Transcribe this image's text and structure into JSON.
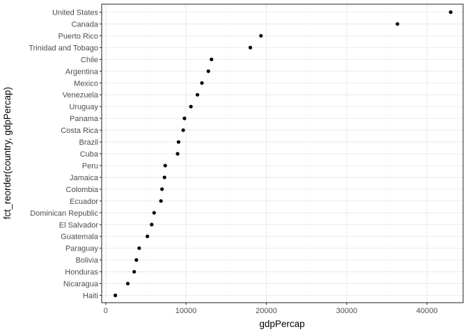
{
  "chart_data": {
    "type": "scatter",
    "xlabel": "gdpPercap",
    "ylabel": "fct_reorder(country, gdpPercap)",
    "xlim": [
      -500,
      44500
    ],
    "x_ticks": [
      0,
      10000,
      20000,
      30000,
      40000
    ],
    "x_tick_labels": [
      "0",
      "10000",
      "20000",
      "30000",
      "40000"
    ],
    "grid": true,
    "point_color": "#000000",
    "panel_border_color": "#333333",
    "grid_major_color": "#ebebeb",
    "grid_minor_color": "#f5f5f5",
    "points": [
      {
        "country": "Haiti",
        "gdpPercap": 1200
      },
      {
        "country": "Nicaragua",
        "gdpPercap": 2750
      },
      {
        "country": "Honduras",
        "gdpPercap": 3550
      },
      {
        "country": "Bolivia",
        "gdpPercap": 3820
      },
      {
        "country": "Paraguay",
        "gdpPercap": 4170
      },
      {
        "country": "Guatemala",
        "gdpPercap": 5190
      },
      {
        "country": "El Salvador",
        "gdpPercap": 5730
      },
      {
        "country": "Dominican Republic",
        "gdpPercap": 6030
      },
      {
        "country": "Ecuador",
        "gdpPercap": 6880
      },
      {
        "country": "Colombia",
        "gdpPercap": 7010
      },
      {
        "country": "Jamaica",
        "gdpPercap": 7320
      },
      {
        "country": "Peru",
        "gdpPercap": 7410
      },
      {
        "country": "Cuba",
        "gdpPercap": 8950
      },
      {
        "country": "Brazil",
        "gdpPercap": 9070
      },
      {
        "country": "Costa Rica",
        "gdpPercap": 9650
      },
      {
        "country": "Panama",
        "gdpPercap": 9810
      },
      {
        "country": "Uruguay",
        "gdpPercap": 10610
      },
      {
        "country": "Venezuela",
        "gdpPercap": 11420
      },
      {
        "country": "Mexico",
        "gdpPercap": 11980
      },
      {
        "country": "Argentina",
        "gdpPercap": 12780
      },
      {
        "country": "Chile",
        "gdpPercap": 13170
      },
      {
        "country": "Trinidad and Tobago",
        "gdpPercap": 18010
      },
      {
        "country": "Puerto Rico",
        "gdpPercap": 19330
      },
      {
        "country": "Canada",
        "gdpPercap": 36320
      },
      {
        "country": "United States",
        "gdpPercap": 42950
      }
    ]
  }
}
